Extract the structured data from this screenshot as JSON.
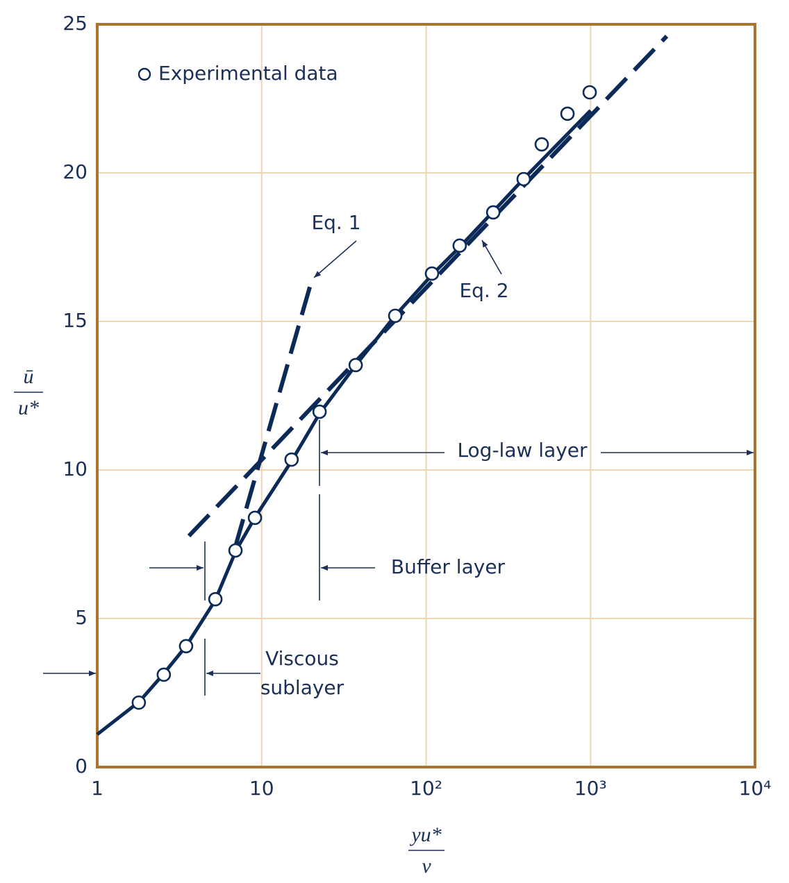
{
  "chart_data": {
    "type": "line",
    "xscale": "log",
    "xlabel": {
      "numerator": "yu*",
      "denominator": "ν"
    },
    "ylabel": {
      "numerator": "ū",
      "denominator": "u*"
    },
    "xlim": [
      1,
      10000
    ],
    "ylim": [
      0,
      25
    ],
    "xticks": [
      1,
      10,
      {
        "value": 100,
        "label": "10²"
      },
      {
        "value": 1000,
        "label": "10³"
      },
      {
        "value": 10000,
        "label": "10⁴"
      }
    ],
    "yticks": [
      0,
      5,
      10,
      15,
      20,
      25
    ],
    "grid": true,
    "color": "#0c2a57",
    "frame_color": "#a8742f",
    "grid_color": "#ecd7b3",
    "series": [
      {
        "name": "Experimental data",
        "type": "scatter",
        "x": [
          1.79,
          2.54,
          3.47,
          5.23,
          6.93,
          9.1,
          15.2,
          22.5,
          37.3,
          64.9,
          108.6,
          160,
          256,
          392,
          505,
          724,
          988
        ],
        "values": [
          2.17,
          3.11,
          4.07,
          5.65,
          7.29,
          8.39,
          10.35,
          11.96,
          13.53,
          15.19,
          16.61,
          17.55,
          18.67,
          19.79,
          20.96,
          21.99,
          22.71
        ]
      },
      {
        "name": "Eq. 1",
        "type": "line",
        "style": "dashed",
        "x": [
          6.9,
          20.2
        ],
        "values": [
          7.4,
          16.4
        ]
      },
      {
        "name": "Eq. 2",
        "type": "line",
        "style": "dashed",
        "x": [
          3.61,
          2908
        ],
        "values": [
          7.78,
          24.6
        ]
      },
      {
        "type": "line",
        "style": "solid",
        "x": [
          1,
          1.8,
          2.5,
          3.5,
          5.2,
          7,
          9.1,
          15.2,
          22.5,
          37,
          65,
          110,
          160,
          256,
          392,
          1000
        ],
        "values": [
          1.1,
          2.2,
          3.1,
          4.1,
          5.6,
          7.3,
          8.4,
          10.3,
          11.9,
          13.5,
          15.2,
          16.6,
          17.5,
          18.7,
          19.8,
          22.1
        ]
      }
    ],
    "annotations": {
      "log_law": "Log-law layer",
      "buffer": "Buffer layer",
      "viscous": [
        "Viscous",
        "sublayer"
      ]
    }
  }
}
